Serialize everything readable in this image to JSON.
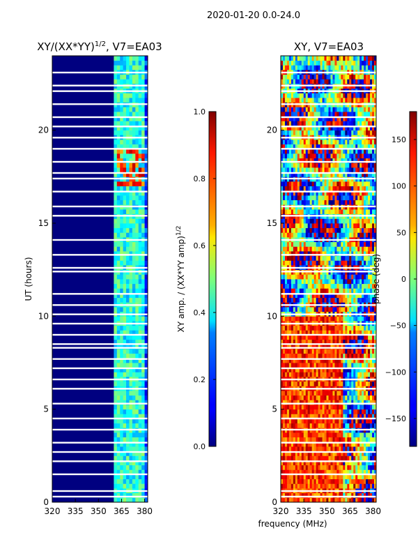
{
  "suptitle": "2020-01-20 0.0-24.0",
  "chart_data": [
    {
      "type": "heatmap",
      "title_main": "XY/(XX*YY)",
      "title_sup": "1/2",
      "title_suffix": ", V7=EA03",
      "xlabel": "",
      "ylabel": "UT (hours)",
      "xlim": [
        320,
        382
      ],
      "ylim": [
        0,
        24
      ],
      "x_ticks": [
        "320",
        "335",
        "350",
        "365",
        "380"
      ],
      "y_ticks": [
        "0",
        "5",
        "10",
        "15",
        "20"
      ],
      "colorbar": {
        "label_main": "XY amp. / (XX*YY amp)",
        "label_sup": "1/2",
        "range": [
          0.0,
          1.0
        ],
        "ticks": [
          "0.0",
          "0.2",
          "0.4",
          "0.6",
          "0.8",
          "1.0"
        ],
        "colormap": "jet"
      }
    },
    {
      "type": "heatmap",
      "title": "XY, V7=EA03",
      "xlabel": "frequency (MHz)",
      "ylabel": "",
      "xlim": [
        320,
        382
      ],
      "ylim": [
        0,
        24
      ],
      "x_ticks": [
        "320",
        "335",
        "350",
        "365",
        "380"
      ],
      "y_ticks": [
        "0",
        "5",
        "10",
        "15",
        "20"
      ],
      "colorbar": {
        "label": "phase (deg)",
        "range": [
          -180,
          180
        ],
        "ticks": [
          "−150",
          "−100",
          "−50",
          "0",
          "50",
          "100",
          "150"
        ],
        "colormap": "jet"
      }
    }
  ],
  "blank_hours": [
    0.3,
    0.6,
    1.5,
    2.2,
    2.7,
    3.2,
    3.9,
    4.5,
    5.3,
    6.1,
    6.6,
    7.2,
    7.7,
    8.3,
    8.5,
    9.0,
    9.6,
    10.1,
    10.6,
    11.2,
    12.4,
    12.6,
    13.3,
    14.1,
    15.4,
    15.9,
    16.7,
    17.4,
    17.7,
    18.3,
    19.0,
    19.6,
    20.2,
    20.7,
    21.4,
    22.1,
    22.4,
    23.1
  ],
  "bright_channels_mhz": [
    362,
    363,
    365,
    366,
    370,
    372,
    374,
    377,
    379
  ]
}
